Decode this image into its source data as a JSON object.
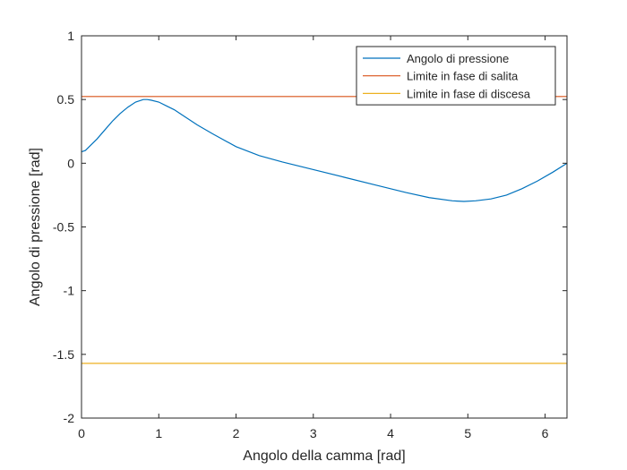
{
  "chart_data": {
    "type": "line",
    "title": "",
    "xlabel": "Angolo della camma [rad]",
    "ylabel": "Angolo di pressione [rad]",
    "xlim": [
      0,
      6.2832
    ],
    "ylim": [
      -2,
      1
    ],
    "xticks": [
      0,
      1,
      2,
      3,
      4,
      5,
      6
    ],
    "xtick_labels": [
      "0",
      "1",
      "2",
      "3",
      "4",
      "5",
      "6"
    ],
    "yticks": [
      1,
      0.5,
      0,
      -0.5,
      -1,
      -1.5,
      -2
    ],
    "ytick_labels": [
      "1",
      "0.5",
      "0",
      "-0.5",
      "-1",
      "-1.5",
      "-2"
    ],
    "grid": false,
    "legend_position": "top-right",
    "series": [
      {
        "name": "Angolo di pressione",
        "color": "#0072BD",
        "x": [
          0,
          0.05,
          0.1,
          0.2,
          0.3,
          0.4,
          0.5,
          0.6,
          0.7,
          0.8,
          0.85,
          0.9,
          1.0,
          1.1,
          1.2,
          1.3,
          1.5,
          1.7,
          2.0,
          2.3,
          2.6,
          3.0,
          3.4,
          3.8,
          4.2,
          4.5,
          4.8,
          4.95,
          5.1,
          5.3,
          5.5,
          5.7,
          5.9,
          6.1,
          6.2832
        ],
        "y": [
          0.09,
          0.1,
          0.13,
          0.19,
          0.26,
          0.33,
          0.39,
          0.44,
          0.48,
          0.5,
          0.5,
          0.495,
          0.48,
          0.45,
          0.42,
          0.38,
          0.3,
          0.23,
          0.13,
          0.06,
          0.01,
          -0.05,
          -0.11,
          -0.17,
          -0.23,
          -0.27,
          -0.295,
          -0.3,
          -0.295,
          -0.28,
          -0.25,
          -0.2,
          -0.14,
          -0.07,
          0.0
        ]
      },
      {
        "name": "Limite in fase di salita",
        "color": "#D95319",
        "x": [
          0,
          6.2832
        ],
        "y": [
          0.5236,
          0.5236
        ]
      },
      {
        "name": "Limite in fase di discesa",
        "color": "#EDB120",
        "x": [
          0,
          6.2832
        ],
        "y": [
          -1.5708,
          -1.5708
        ]
      }
    ]
  }
}
